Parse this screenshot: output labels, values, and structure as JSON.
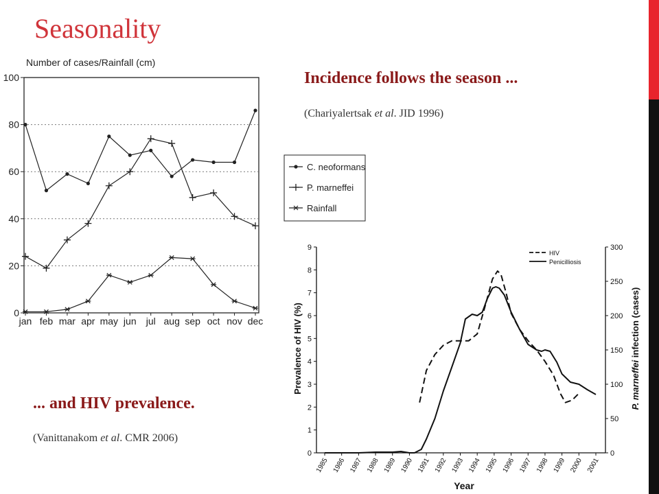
{
  "slide": {
    "title": "Seasonality",
    "heading1": "Incidence follows the season ...",
    "citation1": {
      "before": "(Chariyalertsak ",
      "italic": "et al",
      "after": ". JID 1996)"
    },
    "heading2": "... and HIV prevalence.",
    "citation2": {
      "before": "(Vanittanakom ",
      "italic": "et al",
      "after": ". CMR 2006)"
    },
    "colors": {
      "title": "#d0343a",
      "heading": "#8a1a1a",
      "accent_red": "#e8242c",
      "accent_black": "#111111"
    }
  },
  "chart_data": [
    {
      "type": "line",
      "ylabel": "Number of cases/Rainfall (cm)",
      "categories": [
        "jan",
        "feb",
        "mar",
        "apr",
        "may",
        "jun",
        "jul",
        "aug",
        "sep",
        "oct",
        "nov",
        "dec"
      ],
      "ylim": [
        0,
        100
      ],
      "yticks": [
        0,
        20,
        40,
        60,
        80,
        100
      ],
      "grid": "dotted horizontal",
      "legend_position": "right",
      "series": [
        {
          "name": "C. neoformans",
          "marker": "dot",
          "values": [
            80,
            52,
            59,
            55,
            75,
            67,
            69,
            58,
            65,
            64,
            64,
            86
          ]
        },
        {
          "name": "P. marneffei",
          "marker": "plus",
          "values": [
            24,
            19,
            31,
            38,
            54,
            60,
            74,
            72,
            49,
            51,
            41,
            37
          ]
        },
        {
          "name": "Rainfall",
          "marker": "star",
          "values": [
            0.5,
            0.5,
            1.5,
            5,
            16,
            13,
            16,
            23.5,
            23,
            12,
            5,
            2
          ]
        }
      ]
    },
    {
      "type": "line",
      "xlabel": "Year",
      "ylabel_left": "Prevalence of HIV (%)",
      "ylabel_right_before": "P. marneffei",
      "ylabel_right_after": " infection (cases)",
      "x_ticks": [
        "1985",
        "1986",
        "1987",
        "1988",
        "1989",
        "1990",
        "1991",
        "1992",
        "1993",
        "1994",
        "1995",
        "1996",
        "1997",
        "1998",
        "1999",
        "2000",
        "2001"
      ],
      "ylim_left": [
        0,
        9
      ],
      "yticks_left": [
        0,
        1,
        2,
        3,
        4,
        5,
        6,
        7,
        8,
        9
      ],
      "ylim_right": [
        0,
        300
      ],
      "yticks_right": [
        0,
        50,
        100,
        150,
        200,
        250,
        300
      ],
      "legend_position": "top-right",
      "series": [
        {
          "name": "HIV",
          "style": "dashed",
          "axis": "left",
          "x": [
            1990.6,
            1991.0,
            1991.5,
            1992.0,
            1992.5,
            1993.0,
            1993.5,
            1994.0,
            1994.5,
            1994.9,
            1995.2,
            1995.4,
            1995.7,
            1996.0,
            1996.5,
            1997.0,
            1997.5,
            1998.0,
            1998.5,
            1998.9,
            1999.2,
            1999.6,
            2000.0
          ],
          "y": [
            2.2,
            3.6,
            4.3,
            4.7,
            4.9,
            4.9,
            4.9,
            5.2,
            6.5,
            7.6,
            7.95,
            7.8,
            7.0,
            6.1,
            5.4,
            4.9,
            4.5,
            4.0,
            3.4,
            2.6,
            2.2,
            2.3,
            2.6
          ]
        },
        {
          "name": "Penicilliosis",
          "style": "solid",
          "axis": "right",
          "x": [
            1985.0,
            1986.0,
            1987.0,
            1988.0,
            1989.0,
            1989.5,
            1990.0,
            1990.3,
            1990.7,
            1991.0,
            1991.5,
            1992.0,
            1992.5,
            1993.0,
            1993.3,
            1993.7,
            1994.0,
            1994.3,
            1994.6,
            1994.9,
            1995.1,
            1995.3,
            1995.6,
            1996.0,
            1996.5,
            1997.0,
            1997.5,
            1997.8,
            1998.0,
            1998.3,
            1998.7,
            1999.0,
            1999.5,
            2000.0,
            2000.5,
            2001.0
          ],
          "y": [
            0,
            0,
            0,
            1,
            1,
            2,
            0,
            0,
            5,
            20,
            50,
            90,
            125,
            160,
            195,
            202,
            200,
            205,
            225,
            240,
            242,
            240,
            230,
            205,
            180,
            158,
            150,
            148,
            150,
            148,
            132,
            115,
            103,
            100,
            92,
            85
          ]
        }
      ]
    }
  ]
}
